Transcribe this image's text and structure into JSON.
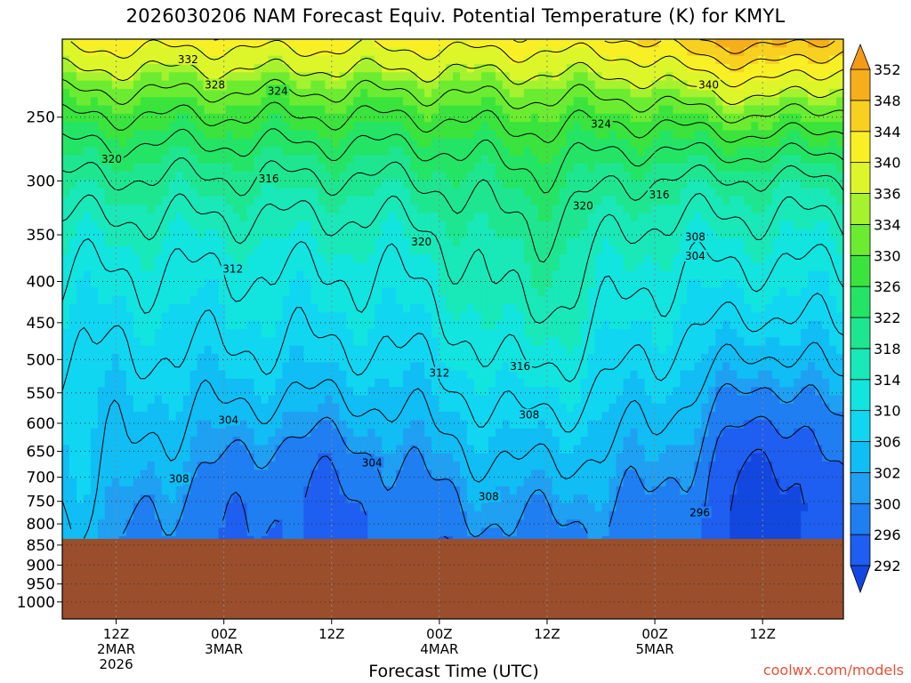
{
  "title": "2026030206 NAM Forecast Equiv. Potential Temperature (K) for KMYL",
  "credit": "coolwx.com/models",
  "chart_data": {
    "type": "heatmap",
    "title": "2026030206 NAM Forecast Equiv. Potential Temperature (K) for KMYL",
    "xlabel": "Forecast Time (UTC)",
    "ylabel": "",
    "x_hours_from_start": [
      0,
      87
    ],
    "x_ticks": [
      {
        "hour": 6,
        "lines": [
          "12Z",
          "2MAR",
          "2026"
        ]
      },
      {
        "hour": 18,
        "lines": [
          "00Z",
          "3MAR"
        ]
      },
      {
        "hour": 30,
        "lines": [
          "12Z"
        ]
      },
      {
        "hour": 42,
        "lines": [
          "00Z",
          "4MAR"
        ]
      },
      {
        "hour": 54,
        "lines": [
          "12Z"
        ]
      },
      {
        "hour": 66,
        "lines": [
          "00Z",
          "5MAR"
        ]
      },
      {
        "hour": 78,
        "lines": [
          "12Z"
        ]
      }
    ],
    "y_scale": "log-pressure",
    "y_ticks": [
      250,
      300,
      350,
      400,
      450,
      500,
      550,
      600,
      650,
      700,
      750,
      800,
      850,
      900,
      950,
      1000
    ],
    "ylim": [
      200,
      1050
    ],
    "ground_pressure": 835,
    "colorbar": {
      "labels": [
        292,
        296,
        300,
        302,
        306,
        310,
        314,
        318,
        322,
        326,
        330,
        334,
        336,
        340,
        344,
        348,
        352
      ],
      "colors": [
        "#1e3ce6",
        "#1e5ef0",
        "#1f7ef2",
        "#1fa0f2",
        "#10bdf4",
        "#11d6f2",
        "#12e4e0",
        "#19e8b8",
        "#1ee690",
        "#24e466",
        "#3ae43c",
        "#6cec30",
        "#a6f22e",
        "#dcf62a",
        "#f8f025",
        "#f8d020",
        "#f6ae1a",
        "#f09015"
      ],
      "min_color": "#1248e0",
      "max_color": "#f49a18"
    },
    "contour_labels": [
      {
        "text": "332",
        "hour": 14,
        "p": 212
      },
      {
        "text": "328",
        "hour": 17,
        "p": 228
      },
      {
        "text": "324",
        "hour": 24,
        "p": 232
      },
      {
        "text": "340",
        "hour": 72,
        "p": 228
      },
      {
        "text": "324",
        "hour": 60,
        "p": 255
      },
      {
        "text": "320",
        "hour": 5.5,
        "p": 282
      },
      {
        "text": "316",
        "hour": 23,
        "p": 298
      },
      {
        "text": "320",
        "hour": 58,
        "p": 322
      },
      {
        "text": "316",
        "hour": 66.5,
        "p": 312
      },
      {
        "text": "320",
        "hour": 40,
        "p": 357
      },
      {
        "text": "312",
        "hour": 19,
        "p": 386
      },
      {
        "text": "308",
        "hour": 70.5,
        "p": 352
      },
      {
        "text": "304",
        "hour": 70.5,
        "p": 372
      },
      {
        "text": "312",
        "hour": 42,
        "p": 520
      },
      {
        "text": "316",
        "hour": 51,
        "p": 510
      },
      {
        "text": "308",
        "hour": 52,
        "p": 586
      },
      {
        "text": "304",
        "hour": 18.5,
        "p": 595
      },
      {
        "text": "304",
        "hour": 34.5,
        "p": 672
      },
      {
        "text": "308",
        "hour": 13,
        "p": 703
      },
      {
        "text": "308",
        "hour": 47.5,
        "p": 740
      },
      {
        "text": "296",
        "hour": 71,
        "p": 775
      }
    ]
  }
}
